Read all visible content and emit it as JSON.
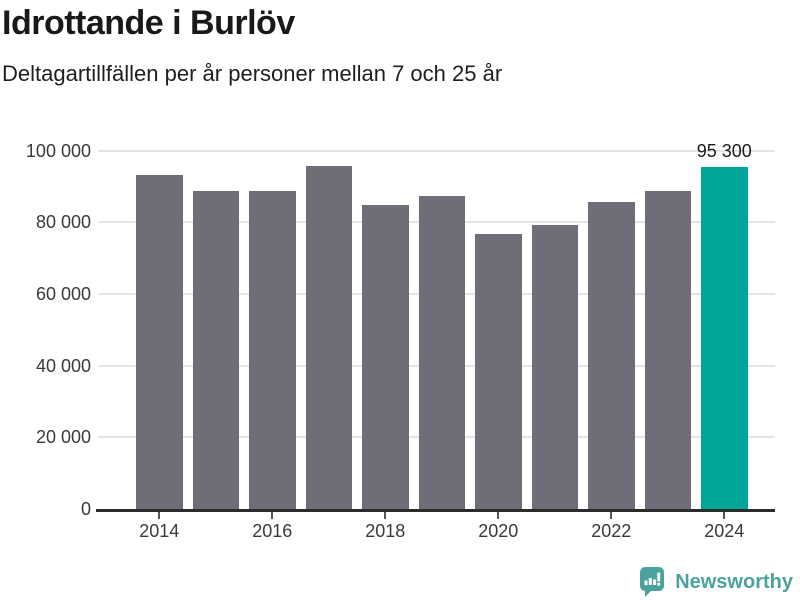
{
  "header": {
    "title": "Idrottande i Burlöv",
    "subtitle": "Deltagartillfällen per år personer mellan 7 och 25 år"
  },
  "chart_data": {
    "type": "bar",
    "title": "Idrottande i Burlöv",
    "subtitle": "Deltagartillfällen per år personer mellan 7 och 25 år",
    "categories": [
      "2014",
      "2015",
      "2016",
      "2017",
      "2018",
      "2019",
      "2020",
      "2021",
      "2022",
      "2023",
      "2024"
    ],
    "values": [
      93100,
      88600,
      88600,
      95800,
      84900,
      87400,
      76800,
      79100,
      85600,
      88600,
      95300
    ],
    "highlight": {
      "index": 10,
      "color": "#00a69a",
      "label": "95 300"
    },
    "bar_color": "#6e6e78",
    "y_axis": {
      "min": 0,
      "max": 100000,
      "tick_step": 20000,
      "tick_labels": [
        "0",
        "20 000",
        "40 000",
        "60 000",
        "80 000",
        "100 000"
      ]
    },
    "x_axis": {
      "visible_tick_labels": [
        "2014",
        "2016",
        "2018",
        "2020",
        "2022",
        "2024"
      ]
    },
    "grid": "horizontal",
    "legend": "none"
  },
  "footer": {
    "brand": "Newsworthy",
    "logo_icon": "newsworthy-logo",
    "brand_color": "#4ba29c"
  },
  "colors": {
    "background": "#ffffff",
    "bar_default": "#6e6e78",
    "bar_highlight": "#00a69a",
    "gridline": "#e4e4e4",
    "axis_line": "#2b2b2b",
    "title_text": "#191919",
    "axis_text": "#3a3a3a",
    "annotation_text": "#1a1a1a"
  }
}
